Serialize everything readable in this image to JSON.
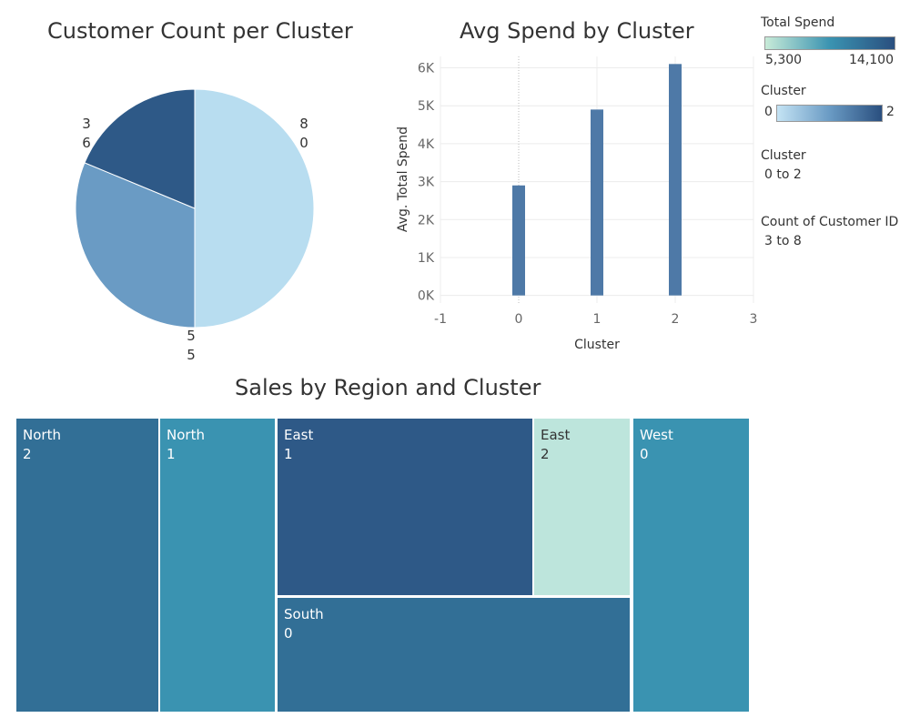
{
  "pie": {
    "title": "Customer Count per Cluster",
    "labels": [
      [
        "3",
        "6"
      ],
      [
        "8",
        "0"
      ],
      [
        "5",
        "5"
      ]
    ]
  },
  "bar": {
    "title": "Avg Spend by Cluster"
  },
  "treemap": {
    "title": "Sales by Region and Cluster"
  },
  "legends": {
    "total_spend": {
      "title": "Total Spend",
      "min": "5,300",
      "max": "14,100"
    },
    "cluster_color": {
      "title": "Cluster",
      "min": "0",
      "max": "2"
    },
    "cluster_filter": {
      "title": "Cluster",
      "range": "0 to 2"
    },
    "count_filter": {
      "title": "Count of Customer ID",
      "range": "3 to 8"
    }
  },
  "colors": {
    "dark_blue": "#2e5987",
    "mid_blue": "#6a9bc4",
    "light_blue": "#b8ddf0",
    "bar": "#4e79a7",
    "teal": "#3a93b1",
    "steel": "#326f96",
    "mint": "#bde5dc",
    "grid": "#e8e8e8"
  },
  "chart_data": [
    {
      "type": "pie",
      "title": "Customer Count per Cluster",
      "slices": [
        {
          "cluster": 0,
          "count": 8,
          "label": "8\n0",
          "color": "#b8ddf0"
        },
        {
          "cluster": 1,
          "count": 5,
          "label": "5\n5",
          "color": "#6a9bc4"
        },
        {
          "cluster": 2,
          "count": 3,
          "label": "3\n6",
          "color": "#2e5987"
        }
      ]
    },
    {
      "type": "bar",
      "title": "Avg Spend by Cluster",
      "xlabel": "Cluster",
      "ylabel": "Avg. Total Spend",
      "categories": [
        0,
        1,
        2
      ],
      "values": [
        2900,
        4900,
        6100
      ],
      "xlim": [
        -1,
        3
      ],
      "ylim": [
        -200,
        6300
      ],
      "xticks": [
        "-1",
        "0",
        "1",
        "2",
        "3"
      ],
      "yticks": [
        {
          "value": 0,
          "label": "0K"
        },
        {
          "value": 1000,
          "label": "1K"
        },
        {
          "value": 2000,
          "label": "2K"
        },
        {
          "value": 3000,
          "label": "3K"
        },
        {
          "value": 4000,
          "label": "4K"
        },
        {
          "value": 5000,
          "label": "5K"
        },
        {
          "value": 6000,
          "label": "6K"
        }
      ],
      "grid": true
    },
    {
      "type": "treemap",
      "title": "Sales by Region and Cluster",
      "cells": [
        {
          "region": "North",
          "cluster": "2",
          "color": "#326f96"
        },
        {
          "region": "North",
          "cluster": "1",
          "color": "#3a93b1"
        },
        {
          "region": "East",
          "cluster": "1",
          "color": "#2e5987"
        },
        {
          "region": "East",
          "cluster": "2",
          "color": "#bde5dc"
        },
        {
          "region": "South",
          "cluster": "0",
          "color": "#326f96"
        },
        {
          "region": "West",
          "cluster": "0",
          "color": "#3a93b1"
        }
      ]
    }
  ]
}
